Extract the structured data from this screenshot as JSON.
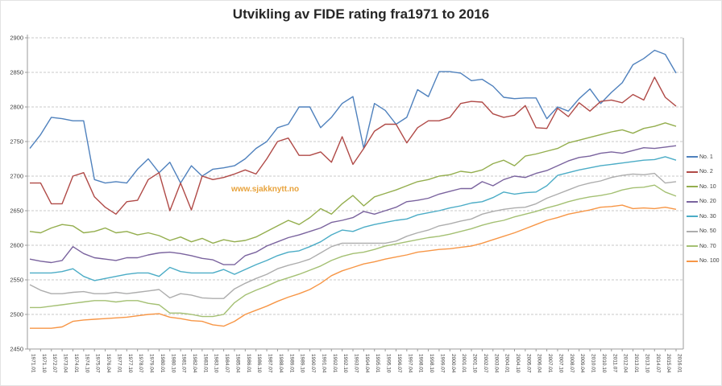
{
  "title": "Utvikling av FIDE rating fra1971 to 2016",
  "watermark": "www.sjakknytt.no",
  "colors": {
    "grid": "#c8c8c8",
    "axis": "#9b9b9b",
    "tick_text": "#404040",
    "title_text": "#262626",
    "watermark_text": "#e8a33d"
  },
  "chart_data": {
    "type": "line",
    "title": "Utvikling av FIDE rating fra1971 to 2016",
    "xlabel": "",
    "ylabel": "",
    "ylim": [
      2450,
      2900
    ],
    "y_ticks": [
      2450,
      2500,
      2550,
      2600,
      2650,
      2700,
      2750,
      2800,
      2850,
      2900
    ],
    "grid": "dashed-horizontal",
    "legend_position": "right",
    "x_tick_labels": [
      "1971.01",
      "1971.10",
      "1972.07",
      "1973.04",
      "1974.01",
      "1974.10",
      "1975.07",
      "1976.04",
      "1977.01",
      "1977.10",
      "1978.07",
      "1979.04",
      "1980.01",
      "1980.10",
      "1981.07",
      "1982.04",
      "1983.01",
      "1983.10",
      "1984.07",
      "1985.04",
      "1986.01",
      "1986.10",
      "1987.07",
      "1988.04",
      "1989.01",
      "1989.10",
      "1990.07",
      "1991.04",
      "1992.01",
      "1992.10",
      "1993.07",
      "1994.04",
      "1995.01",
      "1995.10",
      "1996.07",
      "1997.04",
      "1998.01",
      "1998.10",
      "1999.07",
      "2000.04",
      "2001.01",
      "2001.10",
      "2002.07",
      "2003.04",
      "2004.01",
      "2004.10",
      "2005.07",
      "2006.04",
      "2007.01",
      "2007.10",
      "2008.07",
      "2009.04",
      "2010.01",
      "2010.10",
      "2011.07",
      "2012.04",
      "2013.01",
      "2013.10",
      "2014.07",
      "2015.04",
      "2016.01"
    ],
    "series": [
      {
        "name": "No. 1",
        "color": "#4f81bd",
        "values": [
          2740,
          2760,
          2785,
          2783,
          2780,
          2780,
          2695,
          2690,
          2692,
          2690,
          2710,
          2725,
          2705,
          2720,
          2690,
          2715,
          2700,
          2710,
          2712,
          2715,
          2725,
          2740,
          2750,
          2770,
          2775,
          2800,
          2800,
          2770,
          2785,
          2805,
          2815,
          2740,
          2805,
          2795,
          2775,
          2785,
          2825,
          2815,
          2851,
          2851,
          2849,
          2838,
          2840,
          2830,
          2814,
          2812,
          2813,
          2813,
          2783,
          2800,
          2794,
          2812,
          2826,
          2805,
          2821,
          2835,
          2861,
          2870,
          2882,
          2876,
          2849
        ]
      },
      {
        "name": "No. 2",
        "color": "#b04a47",
        "values": [
          2690,
          2690,
          2660,
          2660,
          2700,
          2705,
          2670,
          2655,
          2645,
          2663,
          2665,
          2695,
          2705,
          2650,
          2690,
          2651,
          2700,
          2695,
          2698,
          2703,
          2709,
          2703,
          2725,
          2750,
          2755,
          2730,
          2730,
          2735,
          2720,
          2757,
          2717,
          2740,
          2765,
          2775,
          2775,
          2748,
          2770,
          2780,
          2780,
          2785,
          2805,
          2808,
          2807,
          2790,
          2785,
          2788,
          2802,
          2770,
          2769,
          2798,
          2786,
          2806,
          2794,
          2808,
          2810,
          2806,
          2818,
          2810,
          2843,
          2814,
          2801
        ]
      },
      {
        "name": "No. 10",
        "color": "#94ae4e",
        "values": [
          2620,
          2618,
          2625,
          2630,
          2628,
          2618,
          2620,
          2625,
          2618,
          2620,
          2615,
          2618,
          2614,
          2607,
          2612,
          2605,
          2610,
          2603,
          2608,
          2605,
          2607,
          2612,
          2620,
          2628,
          2636,
          2630,
          2640,
          2653,
          2645,
          2660,
          2672,
          2657,
          2670,
          2675,
          2680,
          2686,
          2692,
          2695,
          2700,
          2702,
          2707,
          2705,
          2709,
          2718,
          2723,
          2715,
          2729,
          2732,
          2736,
          2740,
          2748,
          2752,
          2756,
          2760,
          2764,
          2767,
          2762,
          2769,
          2772,
          2777,
          2772
        ]
      },
      {
        "name": "No. 20",
        "color": "#7a639e",
        "values": [
          2580,
          2577,
          2575,
          2578,
          2598,
          2588,
          2582,
          2580,
          2578,
          2582,
          2582,
          2586,
          2589,
          2590,
          2588,
          2585,
          2581,
          2579,
          2572,
          2572,
          2585,
          2590,
          2599,
          2605,
          2611,
          2615,
          2620,
          2625,
          2633,
          2636,
          2640,
          2649,
          2645,
          2650,
          2655,
          2663,
          2665,
          2668,
          2674,
          2678,
          2682,
          2682,
          2692,
          2686,
          2695,
          2700,
          2698,
          2704,
          2708,
          2715,
          2722,
          2727,
          2729,
          2733,
          2735,
          2733,
          2737,
          2741,
          2740,
          2742,
          2744
        ]
      },
      {
        "name": "No. 30",
        "color": "#4bacc6",
        "values": [
          2560,
          2560,
          2560,
          2562,
          2566,
          2555,
          2549,
          2552,
          2555,
          2558,
          2560,
          2560,
          2555,
          2568,
          2562,
          2560,
          2560,
          2560,
          2565,
          2558,
          2565,
          2572,
          2578,
          2585,
          2590,
          2592,
          2598,
          2605,
          2615,
          2622,
          2620,
          2626,
          2630,
          2633,
          2636,
          2638,
          2644,
          2647,
          2650,
          2654,
          2657,
          2661,
          2663,
          2669,
          2677,
          2674,
          2676,
          2677,
          2686,
          2701,
          2705,
          2709,
          2712,
          2715,
          2717,
          2719,
          2721,
          2723,
          2724,
          2728,
          2723
        ]
      },
      {
        "name": "No. 50",
        "color": "#adadad",
        "values": [
          2543,
          2535,
          2530,
          2530,
          2532,
          2533,
          2530,
          2530,
          2532,
          2530,
          2532,
          2534,
          2536,
          2524,
          2530,
          2528,
          2524,
          2523,
          2523,
          2537,
          2545,
          2552,
          2558,
          2566,
          2571,
          2575,
          2580,
          2589,
          2598,
          2603,
          2603,
          2603,
          2603,
          2603,
          2606,
          2613,
          2618,
          2622,
          2628,
          2631,
          2635,
          2638,
          2645,
          2649,
          2652,
          2654,
          2655,
          2660,
          2668,
          2674,
          2680,
          2686,
          2690,
          2693,
          2698,
          2701,
          2703,
          2702,
          2704,
          2690,
          2692
        ]
      },
      {
        "name": "No. 70",
        "color": "#a4c073",
        "values": [
          2510,
          2510,
          2512,
          2514,
          2516,
          2518,
          2520,
          2520,
          2518,
          2520,
          2520,
          2516,
          2514,
          2502,
          2502,
          2500,
          2497,
          2497,
          2500,
          2517,
          2528,
          2535,
          2541,
          2548,
          2553,
          2558,
          2564,
          2570,
          2578,
          2584,
          2588,
          2590,
          2594,
          2599,
          2602,
          2605,
          2608,
          2611,
          2613,
          2616,
          2620,
          2624,
          2629,
          2633,
          2636,
          2641,
          2645,
          2649,
          2654,
          2658,
          2663,
          2667,
          2670,
          2672,
          2675,
          2680,
          2683,
          2684,
          2687,
          2677,
          2671
        ]
      },
      {
        "name": "No. 100",
        "color": "#f79646",
        "values": [
          2480,
          2480,
          2480,
          2482,
          2490,
          2492,
          2493,
          2494,
          2495,
          2496,
          2498,
          2500,
          2501,
          2496,
          2494,
          2491,
          2490,
          2485,
          2483,
          2490,
          2500,
          2506,
          2512,
          2519,
          2525,
          2530,
          2536,
          2545,
          2556,
          2563,
          2568,
          2573,
          2576,
          2580,
          2583,
          2586,
          2590,
          2592,
          2594,
          2595,
          2597,
          2599,
          2603,
          2608,
          2613,
          2618,
          2624,
          2630,
          2636,
          2640,
          2645,
          2648,
          2651,
          2655,
          2656,
          2658,
          2653,
          2654,
          2653,
          2655,
          2652
        ]
      }
    ]
  }
}
